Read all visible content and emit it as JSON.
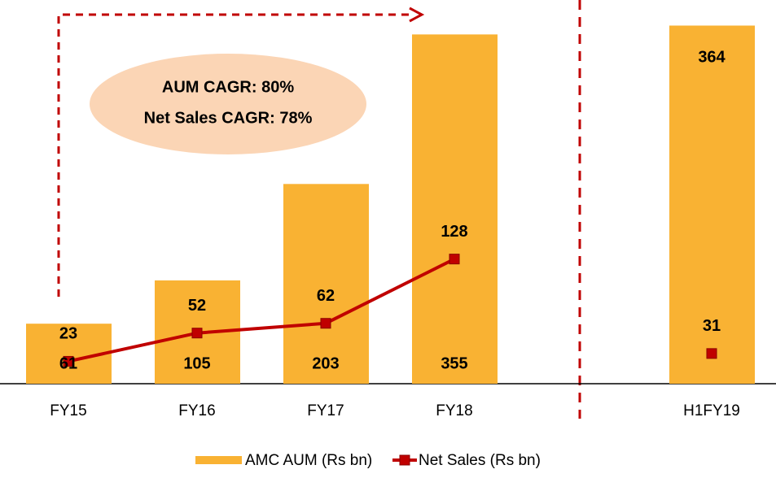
{
  "chart_data": {
    "type": "bar",
    "categories": [
      "FY15",
      "FY16",
      "FY17",
      "FY18",
      null,
      "H1FY19"
    ],
    "series": [
      {
        "name": "AMC AUM (Rs bn)",
        "type": "bar",
        "color": "#f9b233",
        "values": [
          61,
          105,
          203,
          355,
          null,
          364
        ]
      },
      {
        "name": "Net Sales (Rs bn)",
        "type": "line",
        "axis": "y2",
        "color": "#c00000",
        "values": [
          23,
          52,
          62,
          128,
          null,
          31
        ]
      }
    ],
    "ylim": [
      0,
      390
    ],
    "y2lim": [
      0,
      394
    ],
    "annotations": [
      "AUM CAGR: 80%",
      "Net Sales CAGR: 78%"
    ],
    "legend": "bottom"
  }
}
